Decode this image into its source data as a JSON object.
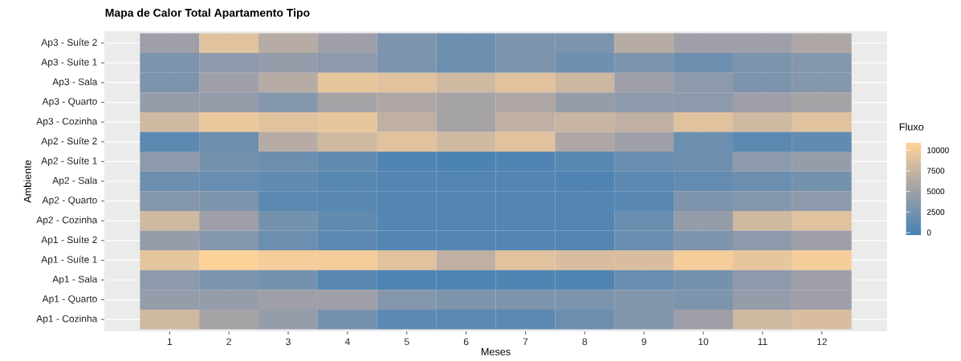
{
  "chart_data": {
    "type": "heatmap",
    "title": "Mapa de Calor Total Apartamento Tipo",
    "xlabel": "Meses",
    "ylabel": "Ambiente",
    "clabel": "Fluxo",
    "categories": [
      "1",
      "2",
      "3",
      "4",
      "5",
      "6",
      "7",
      "8",
      "9",
      "10",
      "11",
      "12"
    ],
    "y_categories": [
      "Ap3 - Suíte 2",
      "Ap3 - Suíte 1",
      "Ap3 - Sala",
      "Ap3 - Quarto",
      "Ap3 - Cozinha",
      "Ap2 - Suíte 2",
      "Ap2 - Suíte 1",
      "Ap2 - Sala",
      "Ap2 - Quarto",
      "Ap2 - Cozinha",
      "Ap1 - Suíte 2",
      "Ap1 - Suíte 1",
      "Ap1 - Sala",
      "Ap1 - Quarto",
      "Ap1 - Cozinha"
    ],
    "cells": [
      [
        5000,
        9000,
        6500,
        5000,
        3000,
        2000,
        3000,
        3000,
        6500,
        5000,
        5000,
        6000
      ],
      [
        3000,
        4000,
        4500,
        4000,
        3000,
        2000,
        3000,
        2200,
        3000,
        2000,
        3000,
        3500
      ],
      [
        3000,
        5000,
        6500,
        9500,
        9000,
        8000,
        9000,
        7800,
        5000,
        4000,
        3000,
        3500
      ],
      [
        4500,
        4500,
        3500,
        5500,
        6000,
        5500,
        6000,
        4500,
        4000,
        4000,
        5000,
        5500
      ],
      [
        8000,
        9700,
        9000,
        9500,
        7000,
        5500,
        7000,
        7500,
        7000,
        9000,
        8000,
        9000
      ],
      [
        1000,
        2000,
        6500,
        8000,
        9000,
        8000,
        9000,
        6000,
        5000,
        2000,
        1000,
        1300
      ],
      [
        4000,
        2500,
        2000,
        1300,
        300,
        0,
        300,
        700,
        1800,
        2000,
        4000,
        4500
      ],
      [
        2000,
        1700,
        1300,
        700,
        500,
        500,
        500,
        300,
        1000,
        1500,
        2000,
        2500
      ],
      [
        3500,
        3000,
        1000,
        800,
        500,
        500,
        500,
        500,
        800,
        3000,
        3500,
        4000
      ],
      [
        8000,
        5000,
        2500,
        1300,
        500,
        500,
        500,
        500,
        1800,
        4500,
        8000,
        9000
      ],
      [
        4500,
        3500,
        2000,
        1000,
        500,
        500,
        500,
        500,
        1800,
        3000,
        4000,
        5000
      ],
      [
        9300,
        10800,
        10200,
        10200,
        9000,
        7000,
        9000,
        8500,
        8500,
        10200,
        9500,
        10200
      ],
      [
        4000,
        3000,
        2500,
        800,
        200,
        100,
        300,
        300,
        1800,
        2500,
        4000,
        5000
      ],
      [
        4500,
        4500,
        5000,
        5000,
        3500,
        3000,
        3000,
        3000,
        3300,
        3000,
        4500,
        5000
      ],
      [
        8000,
        5500,
        4500,
        2500,
        1000,
        1000,
        1000,
        2000,
        3300,
        5000,
        8000,
        8500
      ]
    ],
    "clim": [
      -300,
      10900
    ],
    "cticks": [
      0,
      2500,
      5000,
      7500,
      10000
    ],
    "grid": true
  }
}
